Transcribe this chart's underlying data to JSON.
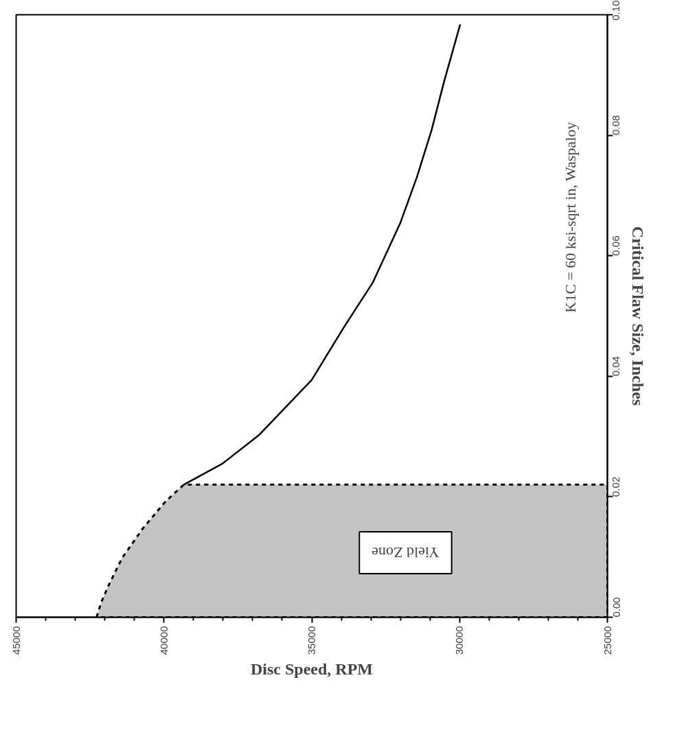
{
  "chart_data": {
    "type": "line",
    "xlabel": "Disc Speed, RPM",
    "ylabel": "Critical Flaw Size, Inches",
    "xlim": [
      45000,
      25000
    ],
    "ylim": [
      0,
      0.1
    ],
    "xticks": [
      45000,
      {
        "value": 44000,
        "label": null
      },
      {
        "value": 43000,
        "label": null
      },
      {
        "value": 42000,
        "label": null
      },
      {
        "value": 41000,
        "label": null
      },
      40000,
      {
        "value": 39000,
        "label": null
      },
      {
        "value": 38000,
        "label": null
      },
      {
        "value": 37000,
        "label": null
      },
      {
        "value": 36000,
        "label": null
      },
      35000,
      {
        "value": 34000,
        "label": null
      },
      {
        "value": 33000,
        "label": null
      },
      {
        "value": 32000,
        "label": null
      },
      {
        "value": 31000,
        "label": null
      },
      30000,
      {
        "value": 29000,
        "label": null
      },
      {
        "value": 28000,
        "label": null
      },
      {
        "value": 27000,
        "label": null
      },
      {
        "value": 26000,
        "label": null
      },
      25000
    ],
    "yticks": [
      {
        "value": 0,
        "label": "0.00"
      },
      {
        "value": 0.02,
        "label": "0.02"
      },
      {
        "value": 0.04,
        "label": "0.04"
      },
      {
        "value": 0.06,
        "label": "0.06"
      },
      {
        "value": 0.08,
        "label": "0.08"
      },
      {
        "value": 0.1,
        "label": "0.10"
      }
    ],
    "series": [
      {
        "type": "area",
        "color": "#c4c4c4",
        "line_style": "dashed",
        "x": [
          42280,
          42120,
          41880,
          41420,
          40720,
          39950,
          39330,
          25000
        ],
        "values": [
          0,
          0.0025,
          0.0052,
          0.0098,
          0.0147,
          0.0192,
          0.022,
          0.022
        ]
      },
      {
        "color": "#000000",
        "line_style": "solid",
        "x": [
          39330,
          38020,
          36770,
          35000,
          33930,
          32930,
          32000,
          31440,
          30950,
          30530,
          29980
        ],
        "values": [
          0.022,
          0.0255,
          0.0303,
          0.0394,
          0.048,
          0.0556,
          0.0655,
          0.0731,
          0.0808,
          0.0888,
          0.0984
        ]
      }
    ],
    "annotations": [
      "Yield Zone",
      "K1C = 60 ksi-sqrt in, Waspaloy"
    ],
    "marker": "none"
  }
}
